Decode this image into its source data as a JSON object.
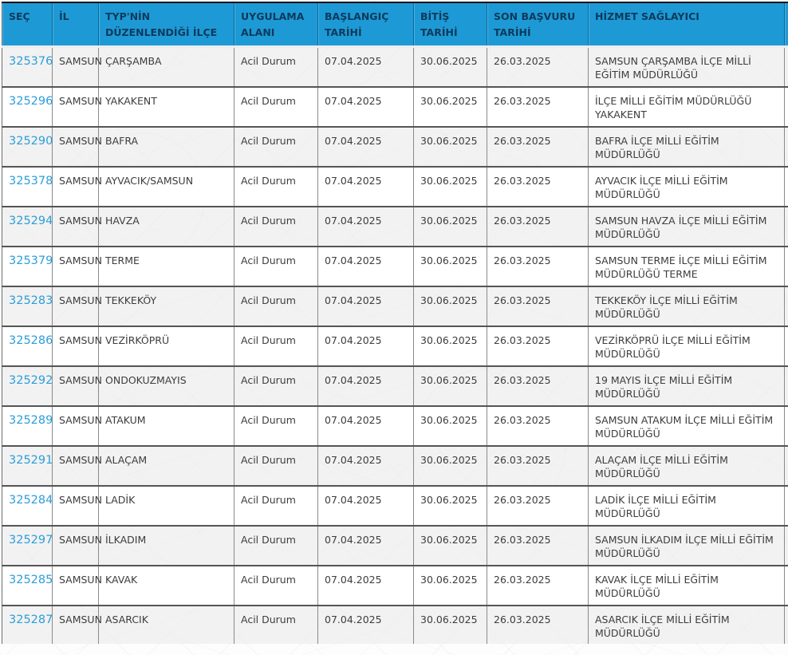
{
  "colors": {
    "header_bg": "#1d9ad6",
    "header_text": "#0d3a5b",
    "link_blue": "#2d9ed9",
    "body_text": "#3d3d3d",
    "cell_border": "#8a8a8a",
    "outer_border": "#111111"
  },
  "table": {
    "columns": [
      {
        "key": "sec",
        "label": "SEÇ"
      },
      {
        "key": "il",
        "label": "İL"
      },
      {
        "key": "ilce",
        "label": "TYP'NİN DÜZENLENDİĞİ İLÇE"
      },
      {
        "key": "alan",
        "label": "UYGULAMA ALANI"
      },
      {
        "key": "baslangic",
        "label": "BAŞLANGIÇ TARİHİ"
      },
      {
        "key": "bitis",
        "label": "BİTİŞ TARİHİ"
      },
      {
        "key": "son",
        "label": "SON BAŞVURU TARİHİ"
      },
      {
        "key": "saglayici",
        "label": "HİZMET SAĞLAYICI"
      },
      {
        "key": "extra",
        "label": ""
      }
    ],
    "rows": [
      {
        "sec": "325376",
        "il": "SAMSUN",
        "ilce": "ÇARŞAMBA",
        "alan": "Acil Durum",
        "baslangic": "07.04.2025",
        "bitis": "30.06.2025",
        "son": "26.03.2025",
        "saglayici": "SAMSUN ÇARŞAMBA İLÇE MİLLİ EĞİTİM MÜDÜRLÜĞÜ",
        "extra": ""
      },
      {
        "sec": "325296",
        "il": "SAMSUN",
        "ilce": "YAKAKENT",
        "alan": "Acil Durum",
        "baslangic": "07.04.2025",
        "bitis": "30.06.2025",
        "son": "26.03.2025",
        "saglayici": "İLÇE MİLLİ EĞİTİM MÜDÜRLÜĞÜ YAKAKENT",
        "extra": ""
      },
      {
        "sec": "325290",
        "il": "SAMSUN",
        "ilce": "BAFRA",
        "alan": "Acil Durum",
        "baslangic": "07.04.2025",
        "bitis": "30.06.2025",
        "son": "26.03.2025",
        "saglayici": "BAFRA İLÇE MİLLİ EĞİTİM MÜDÜRLÜĞÜ",
        "extra": ""
      },
      {
        "sec": "325378",
        "il": "SAMSUN",
        "ilce": "AYVACIK/SAMSUN",
        "alan": "Acil Durum",
        "baslangic": "07.04.2025",
        "bitis": "30.06.2025",
        "son": "26.03.2025",
        "saglayici": "AYVACIK İLÇE MİLLİ EĞİTİM MÜDÜRLÜĞÜ",
        "extra": ""
      },
      {
        "sec": "325294",
        "il": "SAMSUN",
        "ilce": "HAVZA",
        "alan": "Acil Durum",
        "baslangic": "07.04.2025",
        "bitis": "30.06.2025",
        "son": "26.03.2025",
        "saglayici": "SAMSUN HAVZA İLÇE MİLLİ EĞİTİM MÜDÜRLÜĞÜ",
        "extra": ""
      },
      {
        "sec": "325379",
        "il": "SAMSUN",
        "ilce": "TERME",
        "alan": "Acil Durum",
        "baslangic": "07.04.2025",
        "bitis": "30.06.2025",
        "son": "26.03.2025",
        "saglayici": "SAMSUN TERME İLÇE MİLLİ EĞİTİM MÜDÜRLÜĞÜ TERME",
        "extra": ""
      },
      {
        "sec": "325283",
        "il": "SAMSUN",
        "ilce": "TEKKEKÖY",
        "alan": "Acil Durum",
        "baslangic": "07.04.2025",
        "bitis": "30.06.2025",
        "son": "26.03.2025",
        "saglayici": "TEKKEKÖY İLÇE MİLLİ EĞİTİM MÜDÜRLÜĞÜ",
        "extra": ""
      },
      {
        "sec": "325286",
        "il": "SAMSUN",
        "ilce": "VEZİRKÖPRÜ",
        "alan": "Acil Durum",
        "baslangic": "07.04.2025",
        "bitis": "30.06.2025",
        "son": "26.03.2025",
        "saglayici": "VEZİRKÖPRÜ İLÇE MİLLİ EĞİTİM MÜDÜRLÜĞÜ",
        "extra": ""
      },
      {
        "sec": "325292",
        "il": "SAMSUN",
        "ilce": "ONDOKUZMAYIS",
        "alan": "Acil Durum",
        "baslangic": "07.04.2025",
        "bitis": "30.06.2025",
        "son": "26.03.2025",
        "saglayici": "19 MAYIS İLÇE MİLLİ EĞİTİM MÜDÜRLÜĞÜ",
        "extra": ""
      },
      {
        "sec": "325289",
        "il": "SAMSUN",
        "ilce": "ATAKUM",
        "alan": "Acil Durum",
        "baslangic": "07.04.2025",
        "bitis": "30.06.2025",
        "son": "26.03.2025",
        "saglayici": "SAMSUN ATAKUM İLÇE MİLLİ EĞİTİM MÜDÜRLÜĞÜ",
        "extra": ""
      },
      {
        "sec": "325291",
        "il": "SAMSUN",
        "ilce": "ALAÇAM",
        "alan": "Acil Durum",
        "baslangic": "07.04.2025",
        "bitis": "30.06.2025",
        "son": "26.03.2025",
        "saglayici": "ALAÇAM İLÇE MİLLİ EĞİTİM MÜDÜRLÜĞÜ",
        "extra": ""
      },
      {
        "sec": "325284",
        "il": "SAMSUN",
        "ilce": "LADİK",
        "alan": "Acil Durum",
        "baslangic": "07.04.2025",
        "bitis": "30.06.2025",
        "son": "26.03.2025",
        "saglayici": "LADİK İLÇE MİLLİ EĞİTİM MÜDÜRLÜĞÜ",
        "extra": ""
      },
      {
        "sec": "325297",
        "il": "SAMSUN",
        "ilce": "İLKADIM",
        "alan": "Acil Durum",
        "baslangic": "07.04.2025",
        "bitis": "30.06.2025",
        "son": "26.03.2025",
        "saglayici": "SAMSUN İLKADIM İLÇE MİLLİ EĞİTİM MÜDÜRLÜĞÜ",
        "extra": ""
      },
      {
        "sec": "325285",
        "il": "SAMSUN",
        "ilce": "KAVAK",
        "alan": "Acil Durum",
        "baslangic": "07.04.2025",
        "bitis": "30.06.2025",
        "son": "26.03.2025",
        "saglayici": "KAVAK İLÇE MİLLİ EĞİTİM MÜDÜRLÜĞÜ",
        "extra": ""
      },
      {
        "sec": "325287",
        "il": "SAMSUN",
        "ilce": "ASARCIK",
        "alan": "Acil Durum",
        "baslangic": "07.04.2025",
        "bitis": "30.06.2025",
        "son": "26.03.2025",
        "saglayici": "ASARCIK İLÇE MİLLİ EĞİTİM MÜDÜRLÜĞÜ",
        "extra": ""
      }
    ]
  }
}
